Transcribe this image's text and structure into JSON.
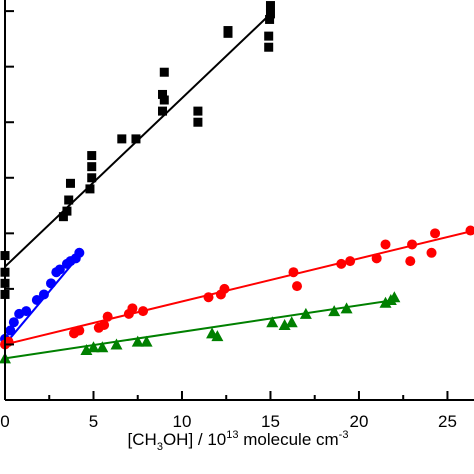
{
  "chart_data": {
    "type": "scatter",
    "title": "",
    "xlabel": {
      "base1": "[CH",
      "sub": "3",
      "base2": "OH] / 10",
      "sup": "13",
      "base3": " molecule cm",
      "sup2": "-3"
    },
    "ylabel": "",
    "xlim": [
      0,
      26.5
    ],
    "ylim": [
      0,
      7.2
    ],
    "x_ticks": [
      0,
      5,
      10,
      15,
      20,
      25
    ],
    "x_tick_labels": [
      "0",
      "5",
      "10",
      "15",
      "20",
      "25"
    ],
    "grid": false,
    "series": [
      {
        "marker": "square",
        "color": "#000000",
        "points": [
          [
            0,
            2.6
          ],
          [
            0,
            2.3
          ],
          [
            0,
            2.1
          ],
          [
            0,
            1.9
          ],
          [
            3.3,
            3.3
          ],
          [
            3.5,
            3.4
          ],
          [
            3.6,
            3.6
          ],
          [
            3.7,
            3.9
          ],
          [
            4.8,
            3.8
          ],
          [
            4.9,
            4.0
          ],
          [
            4.9,
            4.2
          ],
          [
            4.9,
            4.4
          ],
          [
            6.6,
            4.7
          ],
          [
            7.4,
            4.7
          ],
          [
            8.9,
            5.2
          ],
          [
            8.9,
            5.5
          ],
          [
            9.0,
            5.4
          ],
          [
            9.0,
            5.9
          ],
          [
            10.9,
            5.0
          ],
          [
            10.9,
            5.2
          ],
          [
            12.6,
            6.6
          ],
          [
            12.6,
            6.65
          ],
          [
            14.9,
            6.35
          ],
          [
            14.9,
            6.55
          ],
          [
            14.95,
            6.85
          ],
          [
            15.0,
            6.95
          ],
          [
            15.0,
            7.1
          ]
        ],
        "fit": [
          [
            0,
            2.4
          ],
          [
            15.0,
            6.95
          ]
        ]
      },
      {
        "marker": "circle",
        "color": "#0000ff",
        "points": [
          [
            0,
            1.1
          ],
          [
            0.3,
            1.25
          ],
          [
            0.5,
            1.4
          ],
          [
            0.8,
            1.55
          ],
          [
            1.2,
            1.6
          ],
          [
            1.8,
            1.8
          ],
          [
            2.2,
            1.9
          ],
          [
            2.6,
            2.1
          ],
          [
            2.9,
            2.3
          ],
          [
            3.1,
            2.35
          ],
          [
            3.5,
            2.45
          ],
          [
            3.7,
            2.5
          ],
          [
            4.0,
            2.55
          ],
          [
            4.2,
            2.65
          ]
        ],
        "fit": [
          [
            0,
            1.0
          ],
          [
            4.2,
            2.6
          ]
        ]
      },
      {
        "marker": "circle",
        "color": "#ff0000",
        "points": [
          [
            0,
            1.0
          ],
          [
            0.2,
            1.05
          ],
          [
            3.9,
            1.2
          ],
          [
            4.2,
            1.25
          ],
          [
            5.3,
            1.3
          ],
          [
            5.6,
            1.35
          ],
          [
            5.8,
            1.5
          ],
          [
            7.0,
            1.55
          ],
          [
            7.2,
            1.65
          ],
          [
            7.8,
            1.6
          ],
          [
            11.5,
            1.85
          ],
          [
            12.2,
            1.9
          ],
          [
            12.4,
            2.0
          ],
          [
            16.3,
            2.3
          ],
          [
            16.5,
            2.05
          ],
          [
            19.0,
            2.45
          ],
          [
            19.5,
            2.5
          ],
          [
            21.0,
            2.55
          ],
          [
            21.5,
            2.8
          ],
          [
            22.9,
            2.5
          ],
          [
            23.0,
            2.8
          ],
          [
            24.1,
            2.65
          ],
          [
            24.3,
            3.0
          ],
          [
            26.3,
            3.05
          ]
        ],
        "fit": [
          [
            0,
            1.0
          ],
          [
            26.5,
            3.05
          ]
        ]
      },
      {
        "marker": "triangle",
        "color": "#008000",
        "points": [
          [
            0,
            0.75
          ],
          [
            4.6,
            0.9
          ],
          [
            5.0,
            0.95
          ],
          [
            5.5,
            0.95
          ],
          [
            6.3,
            1.0
          ],
          [
            7.5,
            1.05
          ],
          [
            8.0,
            1.05
          ],
          [
            11.7,
            1.2
          ],
          [
            12.0,
            1.15
          ],
          [
            15.1,
            1.4
          ],
          [
            15.8,
            1.35
          ],
          [
            16.2,
            1.4
          ],
          [
            17.0,
            1.55
          ],
          [
            18.6,
            1.6
          ],
          [
            19.3,
            1.65
          ],
          [
            21.5,
            1.75
          ],
          [
            21.8,
            1.8
          ],
          [
            22.0,
            1.85
          ]
        ],
        "fit": [
          [
            0,
            0.75
          ],
          [
            22.0,
            1.8
          ]
        ]
      }
    ]
  }
}
